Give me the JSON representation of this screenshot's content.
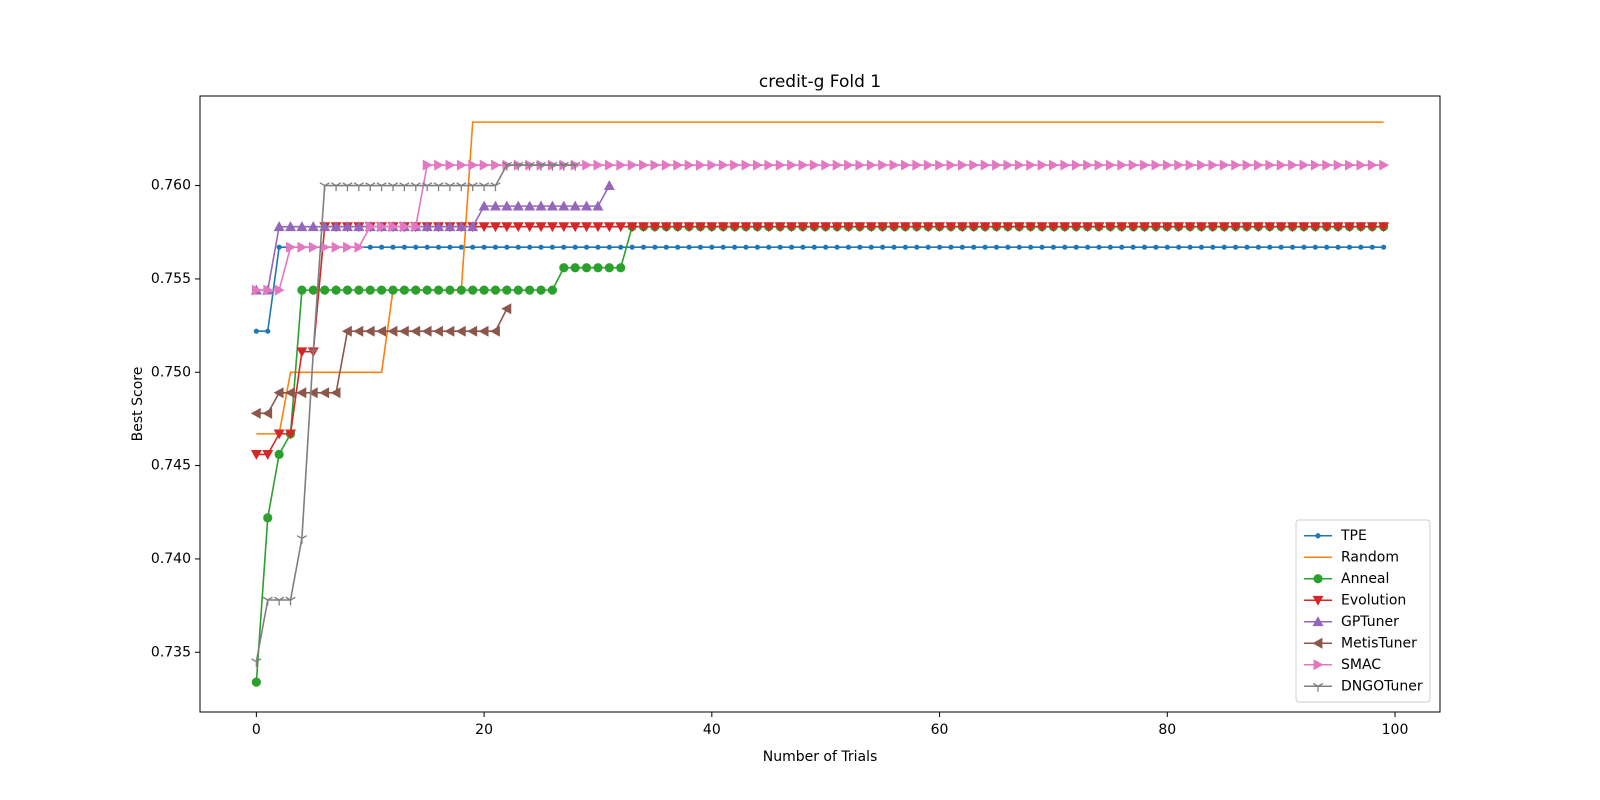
{
  "chart_data": {
    "type": "line",
    "title": "credit-g Fold 1",
    "x_label": "Number of Trials",
    "y_label": "Best Score",
    "x": [
      0,
      1,
      2,
      3,
      4,
      5,
      6,
      7,
      8,
      9,
      10,
      11,
      12,
      13,
      14,
      15,
      16,
      17,
      18,
      19,
      20,
      21,
      22,
      23,
      24,
      25,
      26,
      27,
      28,
      29,
      30,
      31,
      32,
      33,
      34,
      35,
      36,
      37,
      38,
      39,
      40,
      41,
      42,
      43,
      44,
      45,
      46,
      47,
      48,
      49,
      50,
      51,
      52,
      53,
      54,
      55,
      56,
      57,
      58,
      59,
      60,
      61,
      62,
      63,
      64,
      65,
      66,
      67,
      68,
      69,
      70,
      71,
      72,
      73,
      74,
      75,
      76,
      77,
      78,
      79,
      80,
      81,
      82,
      83,
      84,
      85,
      86,
      87,
      88,
      89,
      90,
      91,
      92,
      93,
      94,
      95,
      96,
      97,
      98,
      99
    ],
    "xlim": [
      -4.95,
      103.95
    ],
    "xticks": [
      0,
      20,
      40,
      60,
      80,
      100
    ],
    "ylim": [
      0.7318,
      0.7648
    ],
    "yticks": [
      0.735,
      {
        "value": 0.74,
        "label": "0.740"
      },
      0.745,
      {
        "value": 0.75,
        "label": "0.750"
      },
      0.755,
      {
        "value": 0.76,
        "label": "0.760"
      }
    ],
    "legend": "lower right",
    "series": [
      {
        "name": "TPE",
        "color": "#1f77b4",
        "marker": "dot",
        "values": [
          0.7522,
          0.7522,
          0.7567,
          0.7567,
          0.7567,
          0.7567,
          0.7567,
          0.7567,
          0.7567,
          0.7567,
          0.7567,
          0.7567,
          0.7567,
          0.7567,
          0.7567,
          0.7567,
          0.7567,
          0.7567,
          0.7567,
          0.7567,
          0.7567,
          0.7567,
          0.7567,
          0.7567,
          0.7567,
          0.7567,
          0.7567,
          0.7567,
          0.7567,
          0.7567,
          0.7567,
          0.7567,
          0.7567,
          0.7567,
          0.7567,
          0.7567,
          0.7567,
          0.7567,
          0.7567,
          0.7567,
          0.7567,
          0.7567,
          0.7567,
          0.7567,
          0.7567,
          0.7567,
          0.7567,
          0.7567,
          0.7567,
          0.7567,
          0.7567,
          0.7567,
          0.7567,
          0.7567,
          0.7567,
          0.7567,
          0.7567,
          0.7567,
          0.7567,
          0.7567,
          0.7567,
          0.7567,
          0.7567,
          0.7567,
          0.7567,
          0.7567,
          0.7567,
          0.7567,
          0.7567,
          0.7567,
          0.7567,
          0.7567,
          0.7567,
          0.7567,
          0.7567,
          0.7567,
          0.7567,
          0.7567,
          0.7567,
          0.7567,
          0.7567,
          0.7567,
          0.7567,
          0.7567,
          0.7567,
          0.7567,
          0.7567,
          0.7567,
          0.7567,
          0.7567,
          0.7567,
          0.7567,
          0.7567,
          0.7567,
          0.7567,
          0.7567,
          0.7567,
          0.7567,
          0.7567,
          0.7567
        ]
      },
      {
        "name": "Random",
        "color": "#ff7f0e",
        "marker": "none",
        "values": [
          0.7467,
          0.7467,
          0.7467,
          0.75,
          0.75,
          0.75,
          0.75,
          0.75,
          0.75,
          0.75,
          0.75,
          0.75,
          0.7544,
          0.7544,
          0.7544,
          0.7544,
          0.7544,
          0.7544,
          0.7544,
          0.7634,
          0.7634,
          0.7634,
          0.7634,
          0.7634,
          0.7634,
          0.7634,
          0.7634,
          0.7634,
          0.7634,
          0.7634,
          0.7634,
          0.7634,
          0.7634,
          0.7634,
          0.7634,
          0.7634,
          0.7634,
          0.7634,
          0.7634,
          0.7634,
          0.7634,
          0.7634,
          0.7634,
          0.7634,
          0.7634,
          0.7634,
          0.7634,
          0.7634,
          0.7634,
          0.7634,
          0.7634,
          0.7634,
          0.7634,
          0.7634,
          0.7634,
          0.7634,
          0.7634,
          0.7634,
          0.7634,
          0.7634,
          0.7634,
          0.7634,
          0.7634,
          0.7634,
          0.7634,
          0.7634,
          0.7634,
          0.7634,
          0.7634,
          0.7634,
          0.7634,
          0.7634,
          0.7634,
          0.7634,
          0.7634,
          0.7634,
          0.7634,
          0.7634,
          0.7634,
          0.7634,
          0.7634,
          0.7634,
          0.7634,
          0.7634,
          0.7634,
          0.7634,
          0.7634,
          0.7634,
          0.7634,
          0.7634,
          0.7634,
          0.7634,
          0.7634,
          0.7634,
          0.7634,
          0.7634,
          0.7634,
          0.7634,
          0.7634,
          0.7634
        ]
      },
      {
        "name": "Anneal",
        "color": "#2ca02c",
        "marker": "circle",
        "values": [
          0.7334,
          0.7422,
          0.7456,
          0.7467,
          0.7544,
          0.7544,
          0.7544,
          0.7544,
          0.7544,
          0.7544,
          0.7544,
          0.7544,
          0.7544,
          0.7544,
          0.7544,
          0.7544,
          0.7544,
          0.7544,
          0.7544,
          0.7544,
          0.7544,
          0.7544,
          0.7544,
          0.7544,
          0.7544,
          0.7544,
          0.7544,
          0.7556,
          0.7556,
          0.7556,
          0.7556,
          0.7556,
          0.7556,
          0.7578,
          0.7578,
          0.7578,
          0.7578,
          0.7578,
          0.7578,
          0.7578,
          0.7578,
          0.7578,
          0.7578,
          0.7578,
          0.7578,
          0.7578,
          0.7578,
          0.7578,
          0.7578,
          0.7578,
          0.7578,
          0.7578,
          0.7578,
          0.7578,
          0.7578,
          0.7578,
          0.7578,
          0.7578,
          0.7578,
          0.7578,
          0.7578,
          0.7578,
          0.7578,
          0.7578,
          0.7578,
          0.7578,
          0.7578,
          0.7578,
          0.7578,
          0.7578,
          0.7578,
          0.7578,
          0.7578,
          0.7578,
          0.7578,
          0.7578,
          0.7578,
          0.7578,
          0.7578,
          0.7578,
          0.7578,
          0.7578,
          0.7578,
          0.7578,
          0.7578,
          0.7578,
          0.7578,
          0.7578,
          0.7578,
          0.7578,
          0.7578,
          0.7578,
          0.7578,
          0.7578,
          0.7578,
          0.7578,
          0.7578,
          0.7578,
          0.7578,
          0.7578
        ]
      },
      {
        "name": "Evolution",
        "color": "#d62728",
        "marker": "triangle-down",
        "values": [
          0.7456,
          0.7456,
          0.7467,
          0.7467,
          0.7511,
          0.7511,
          0.7578,
          0.7578,
          0.7578,
          0.7578,
          0.7578,
          0.7578,
          0.7578,
          0.7578,
          0.7578,
          0.7578,
          0.7578,
          0.7578,
          0.7578,
          0.7578,
          0.7578,
          0.7578,
          0.7578,
          0.7578,
          0.7578,
          0.7578,
          0.7578,
          0.7578,
          0.7578,
          0.7578,
          0.7578,
          0.7578,
          0.7578,
          0.7578,
          0.7578,
          0.7578,
          0.7578,
          0.7578,
          0.7578,
          0.7578,
          0.7578,
          0.7578,
          0.7578,
          0.7578,
          0.7578,
          0.7578,
          0.7578,
          0.7578,
          0.7578,
          0.7578,
          0.7578,
          0.7578,
          0.7578,
          0.7578,
          0.7578,
          0.7578,
          0.7578,
          0.7578,
          0.7578,
          0.7578,
          0.7578,
          0.7578,
          0.7578,
          0.7578,
          0.7578,
          0.7578,
          0.7578,
          0.7578,
          0.7578,
          0.7578,
          0.7578,
          0.7578,
          0.7578,
          0.7578,
          0.7578,
          0.7578,
          0.7578,
          0.7578,
          0.7578,
          0.7578,
          0.7578,
          0.7578,
          0.7578,
          0.7578,
          0.7578,
          0.7578,
          0.7578,
          0.7578,
          0.7578,
          0.7578,
          0.7578,
          0.7578,
          0.7578,
          0.7578,
          0.7578,
          0.7578,
          0.7578,
          0.7578,
          0.7578,
          0.7578
        ]
      },
      {
        "name": "GPTuner",
        "color": "#9467bd",
        "marker": "triangle-up",
        "values": [
          0.7544,
          0.7544,
          0.7578,
          0.7578,
          0.7578,
          0.7578,
          0.7578,
          0.7578,
          0.7578,
          0.7578,
          0.7578,
          0.7578,
          0.7578,
          0.7578,
          0.7578,
          0.7578,
          0.7578,
          0.7578,
          0.7578,
          0.7578,
          0.7589,
          0.7589,
          0.7589,
          0.7589,
          0.7589,
          0.7589,
          0.7589,
          0.7589,
          0.7589,
          0.7589,
          0.7589,
          0.76,
          null,
          null,
          null,
          null,
          null,
          null,
          null,
          null,
          null,
          null,
          null,
          null,
          null,
          null,
          null,
          null,
          null,
          null,
          null,
          null,
          null,
          null,
          null,
          null,
          null,
          null,
          null,
          null,
          null,
          null,
          null,
          null,
          null,
          null,
          null,
          null,
          null,
          null,
          null,
          null,
          null,
          null,
          null,
          null,
          null,
          null,
          null,
          null,
          null,
          null,
          null,
          null,
          null,
          null,
          null,
          null,
          null,
          null,
          null,
          null,
          null,
          null,
          null,
          null,
          null,
          null,
          null,
          null
        ]
      },
      {
        "name": "MetisTuner",
        "color": "#8c564b",
        "marker": "triangle-left",
        "values": [
          0.7478,
          0.7478,
          0.7489,
          0.7489,
          0.7489,
          0.7489,
          0.7489,
          0.7489,
          0.7522,
          0.7522,
          0.7522,
          0.7522,
          0.7522,
          0.7522,
          0.7522,
          0.7522,
          0.7522,
          0.7522,
          0.7522,
          0.7522,
          0.7522,
          0.7522,
          0.7534,
          null,
          null,
          null,
          null,
          null,
          null,
          null,
          null,
          null,
          null,
          null,
          null,
          null,
          null,
          null,
          null,
          null,
          null,
          null,
          null,
          null,
          null,
          null,
          null,
          null,
          null,
          null,
          null,
          null,
          null,
          null,
          null,
          null,
          null,
          null,
          null,
          null,
          null,
          null,
          null,
          null,
          null,
          null,
          null,
          null,
          null,
          null,
          null,
          null,
          null,
          null,
          null,
          null,
          null,
          null,
          null,
          null,
          null,
          null,
          null,
          null,
          null,
          null,
          null,
          null,
          null,
          null,
          null,
          null,
          null,
          null,
          null,
          null,
          null,
          null,
          null,
          null
        ]
      },
      {
        "name": "SMAC",
        "color": "#e377c2",
        "marker": "triangle-right",
        "values": [
          0.7544,
          0.7544,
          0.7544,
          0.7567,
          0.7567,
          0.7567,
          0.7567,
          0.7567,
          0.7567,
          0.7567,
          0.7578,
          0.7578,
          0.7578,
          0.7578,
          0.7578,
          0.7611,
          0.7611,
          0.7611,
          0.7611,
          0.7611,
          0.7611,
          0.7611,
          0.7611,
          0.7611,
          0.7611,
          0.7611,
          0.7611,
          0.7611,
          0.7611,
          0.7611,
          0.7611,
          0.7611,
          0.7611,
          0.7611,
          0.7611,
          0.7611,
          0.7611,
          0.7611,
          0.7611,
          0.7611,
          0.7611,
          0.7611,
          0.7611,
          0.7611,
          0.7611,
          0.7611,
          0.7611,
          0.7611,
          0.7611,
          0.7611,
          0.7611,
          0.7611,
          0.7611,
          0.7611,
          0.7611,
          0.7611,
          0.7611,
          0.7611,
          0.7611,
          0.7611,
          0.7611,
          0.7611,
          0.7611,
          0.7611,
          0.7611,
          0.7611,
          0.7611,
          0.7611,
          0.7611,
          0.7611,
          0.7611,
          0.7611,
          0.7611,
          0.7611,
          0.7611,
          0.7611,
          0.7611,
          0.7611,
          0.7611,
          0.7611,
          0.7611,
          0.7611,
          0.7611,
          0.7611,
          0.7611,
          0.7611,
          0.7611,
          0.7611,
          0.7611,
          0.7611,
          0.7611,
          0.7611,
          0.7611,
          0.7611,
          0.7611,
          0.7611,
          0.7611,
          0.7611,
          0.7611,
          0.7611
        ]
      },
      {
        "name": "DNGOTuner",
        "color": "#7f7f7f",
        "marker": "tri-down",
        "values": [
          0.7345,
          0.7378,
          0.7378,
          0.7378,
          0.7411,
          0.7511,
          0.76,
          0.76,
          0.76,
          0.76,
          0.76,
          0.76,
          0.76,
          0.76,
          0.76,
          0.76,
          0.76,
          0.76,
          0.76,
          0.76,
          0.76,
          0.76,
          0.7611,
          0.7611,
          0.7611,
          0.7611,
          0.7611,
          0.7611,
          0.7611,
          null,
          null,
          null,
          null,
          null,
          null,
          null,
          null,
          null,
          null,
          null,
          null,
          null,
          null,
          null,
          null,
          null,
          null,
          null,
          null,
          null,
          null,
          null,
          null,
          null,
          null,
          null,
          null,
          null,
          null,
          null,
          null,
          null,
          null,
          null,
          null,
          null,
          null,
          null,
          null,
          null,
          null,
          null,
          null,
          null,
          null,
          null,
          null,
          null,
          null,
          null,
          null,
          null,
          null,
          null,
          null,
          null,
          null,
          null,
          null,
          null,
          null,
          null,
          null,
          null,
          null,
          null,
          null,
          null,
          null,
          null
        ]
      }
    ]
  }
}
